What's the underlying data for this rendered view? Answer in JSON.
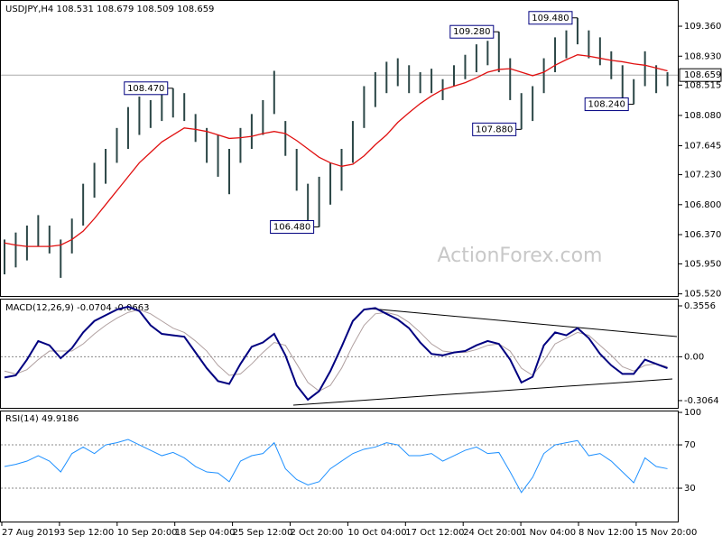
{
  "chart_data": [
    {
      "type": "hilo",
      "title": "USDJPY,H4  108.531 108.679 108.509 108.659",
      "watermark": "ActionForex.com",
      "color": "#2b4646",
      "high": [
        106.3,
        106.4,
        106.5,
        106.65,
        106.5,
        106.3,
        106.6,
        107.1,
        107.4,
        107.6,
        107.9,
        108.2,
        108.35,
        108.3,
        108.4,
        108.47,
        108.4,
        108.1,
        107.9,
        107.8,
        107.6,
        107.9,
        108.1,
        108.3,
        108.72,
        108.0,
        107.6,
        107.1,
        107.2,
        107.4,
        107.6,
        108.0,
        108.5,
        108.7,
        108.85,
        108.9,
        108.8,
        108.7,
        108.75,
        108.6,
        108.8,
        108.95,
        109.1,
        109.15,
        109.28,
        108.9,
        108.4,
        108.5,
        108.9,
        109.2,
        109.3,
        109.48,
        109.3,
        109.2,
        109.0,
        108.8,
        108.6,
        109.0,
        108.8,
        108.7
      ],
      "low": [
        105.8,
        105.9,
        106.0,
        106.2,
        106.1,
        105.75,
        106.1,
        106.5,
        106.9,
        107.1,
        107.4,
        107.6,
        107.8,
        107.9,
        108.0,
        108.05,
        108.0,
        107.7,
        107.4,
        107.2,
        106.95,
        107.4,
        107.6,
        107.8,
        108.1,
        107.5,
        107.0,
        106.55,
        106.48,
        106.8,
        107.0,
        107.4,
        107.9,
        108.2,
        108.4,
        108.5,
        108.4,
        108.4,
        108.4,
        108.3,
        108.5,
        108.6,
        108.7,
        108.8,
        108.7,
        108.3,
        107.88,
        108.0,
        108.4,
        108.7,
        108.9,
        109.1,
        108.9,
        108.8,
        108.6,
        108.3,
        108.24,
        108.5,
        108.4,
        108.5
      ],
      "ma_color": "#e01010",
      "ma_values": [
        106.25,
        106.22,
        106.2,
        106.2,
        106.2,
        106.22,
        106.3,
        106.42,
        106.6,
        106.8,
        107.0,
        107.2,
        107.4,
        107.55,
        107.7,
        107.8,
        107.9,
        107.88,
        107.85,
        107.8,
        107.75,
        107.76,
        107.78,
        107.82,
        107.85,
        107.82,
        107.72,
        107.6,
        107.48,
        107.4,
        107.35,
        107.38,
        107.5,
        107.66,
        107.8,
        107.98,
        108.12,
        108.25,
        108.36,
        108.45,
        108.5,
        108.55,
        108.62,
        108.7,
        108.74,
        108.75,
        108.7,
        108.65,
        108.7,
        108.8,
        108.88,
        108.95,
        108.93,
        108.9,
        108.87,
        108.85,
        108.82,
        108.8,
        108.76,
        108.72
      ],
      "ylim": [
        105.49,
        109.71
      ],
      "yticks": [
        {
          "value": 109.36,
          "label": "109.360"
        },
        {
          "value": 108.93,
          "label": "108.930"
        },
        {
          "value": 108.515,
          "label": "108.515"
        },
        {
          "value": 108.08,
          "label": "108.080"
        },
        {
          "value": 107.645,
          "label": "107.645"
        },
        {
          "value": 107.23,
          "label": "107.230"
        },
        {
          "value": 106.8,
          "label": "106.800"
        },
        {
          "value": 106.37,
          "label": "106.370"
        },
        {
          "value": 105.95,
          "label": "105.950"
        },
        {
          "value": 105.52,
          "label": "105.520"
        }
      ],
      "grid": false,
      "current": {
        "value": 108.659,
        "label": "108.659"
      },
      "annotations": [
        {
          "value": 108.47,
          "label": "108.470"
        },
        {
          "value": 109.28,
          "label": "109.280"
        },
        {
          "value": 109.48,
          "label": "109.480"
        },
        {
          "value": 107.88,
          "label": "107.880"
        },
        {
          "value": 108.24,
          "label": "108.240"
        },
        {
          "value": 106.48,
          "label": "106.480"
        }
      ]
    },
    {
      "type": "macd",
      "title": "MACD(12,26,9) -0.0704 -0.0663",
      "color": "#000080",
      "values": [
        -0.145,
        -0.13,
        -0.02,
        0.11,
        0.08,
        -0.01,
        0.06,
        0.17,
        0.25,
        0.29,
        0.33,
        0.35,
        0.32,
        0.22,
        0.16,
        0.15,
        0.14,
        0.03,
        -0.08,
        -0.17,
        -0.19,
        -0.05,
        0.07,
        0.1,
        0.16,
        0.01,
        -0.2,
        -0.3,
        -0.24,
        -0.1,
        0.07,
        0.25,
        0.33,
        0.34,
        0.3,
        0.26,
        0.2,
        0.1,
        0.02,
        0.01,
        0.03,
        0.04,
        0.08,
        0.11,
        0.09,
        -0.02,
        -0.18,
        -0.14,
        0.08,
        0.17,
        0.15,
        0.2,
        0.13,
        0.02,
        -0.06,
        -0.12,
        -0.12,
        -0.02,
        -0.05,
        -0.08
      ],
      "signal_color": "#b0a0a0",
      "signal_values": [
        -0.1,
        -0.12,
        -0.09,
        -0.02,
        0.04,
        0.04,
        0.04,
        0.09,
        0.16,
        0.22,
        0.27,
        0.31,
        0.33,
        0.3,
        0.25,
        0.2,
        0.17,
        0.11,
        0.04,
        -0.06,
        -0.13,
        -0.12,
        -0.05,
        0.03,
        0.1,
        0.08,
        -0.05,
        -0.18,
        -0.24,
        -0.2,
        -0.08,
        0.08,
        0.22,
        0.3,
        0.31,
        0.29,
        0.24,
        0.17,
        0.09,
        0.04,
        0.03,
        0.03,
        0.05,
        0.08,
        0.09,
        0.04,
        -0.08,
        -0.13,
        -0.03,
        0.09,
        0.13,
        0.17,
        0.15,
        0.08,
        0.01,
        -0.07,
        -0.1,
        -0.06,
        -0.05,
        -0.07
      ],
      "ylim": [
        -0.357,
        0.406
      ],
      "yticks": [
        0.3556,
        {
          "value": 0,
          "label": "0.00"
        },
        -0.3064
      ],
      "grid": [
        1
      ]
    },
    {
      "type": "line",
      "title": "RSI(14) 49.9186",
      "color": "#1e90ff",
      "values": [
        50,
        52,
        55,
        60,
        55,
        45,
        62,
        68,
        62,
        70,
        72,
        75,
        70,
        65,
        60,
        63,
        58,
        50,
        45,
        44,
        36,
        55,
        60,
        62,
        72,
        48,
        38,
        33,
        36,
        48,
        55,
        62,
        66,
        68,
        72,
        70,
        60,
        60,
        62,
        55,
        60,
        65,
        68,
        62,
        63,
        45,
        26,
        40,
        62,
        70,
        72,
        74,
        60,
        62,
        55,
        45,
        35,
        58,
        50,
        48
      ],
      "ylim": [
        -0.8,
        101.7
      ],
      "yticks": [
        100,
        70,
        30
      ],
      "grid": [
        1,
        2
      ],
      "xticks": [
        "27 Aug 2019",
        "3 Sep 12:00",
        "10 Sep 20:00",
        "18 Sep 04:00",
        "25 Sep 12:00",
        "2 Oct 20:00",
        "10 Oct 04:00",
        "17 Oct 12:00",
        "24 Oct 20:00",
        "1 Nov 04:00",
        "8 Nov 12:00",
        "15 Nov 20:00"
      ]
    }
  ]
}
